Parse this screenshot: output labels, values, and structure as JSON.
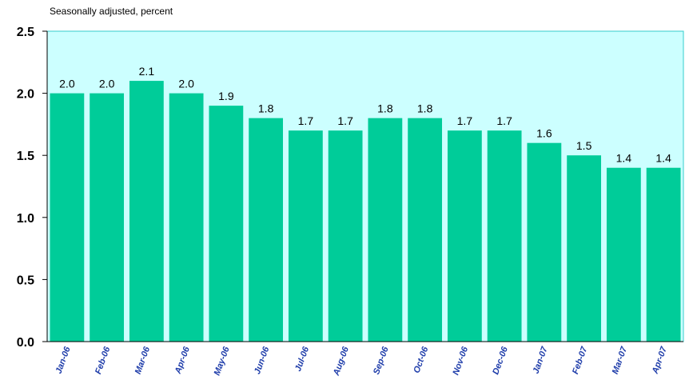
{
  "chart_data": {
    "type": "bar",
    "subtitle": "Seasonally adjusted, percent",
    "categories": [
      "Jan-06",
      "Feb-06",
      "Mar-06",
      "Apr-06",
      "May-06",
      "Jun-06",
      "Jul-06",
      "Aug-06",
      "Sep-06",
      "Oct-06",
      "Nov-06",
      "Dec-06",
      "Jan-07",
      "Feb-07",
      "Mar-07",
      "Apr-07"
    ],
    "values": [
      2.0,
      2.0,
      2.1,
      2.0,
      1.9,
      1.8,
      1.7,
      1.7,
      1.8,
      1.8,
      1.7,
      1.7,
      1.6,
      1.5,
      1.4,
      1.4
    ],
    "data_labels": [
      "2.0",
      "2.0",
      "2.1",
      "2.0",
      "1.9",
      "1.8",
      "1.7",
      "1.7",
      "1.8",
      "1.8",
      "1.7",
      "1.7",
      "1.6",
      "1.5",
      "1.4",
      "1.4"
    ],
    "yticks": [
      "0.0",
      "0.5",
      "1.0",
      "1.5",
      "2.0",
      "2.5"
    ],
    "ylim": [
      0,
      2.5
    ],
    "xlabel": "",
    "ylabel": "",
    "grid": false,
    "legend": "none",
    "colors": {
      "bar": "#00CC99",
      "plot_background": "#CCFFFF",
      "plot_border": "#33CCCC",
      "xtick_text": "#1F3DAA"
    }
  }
}
